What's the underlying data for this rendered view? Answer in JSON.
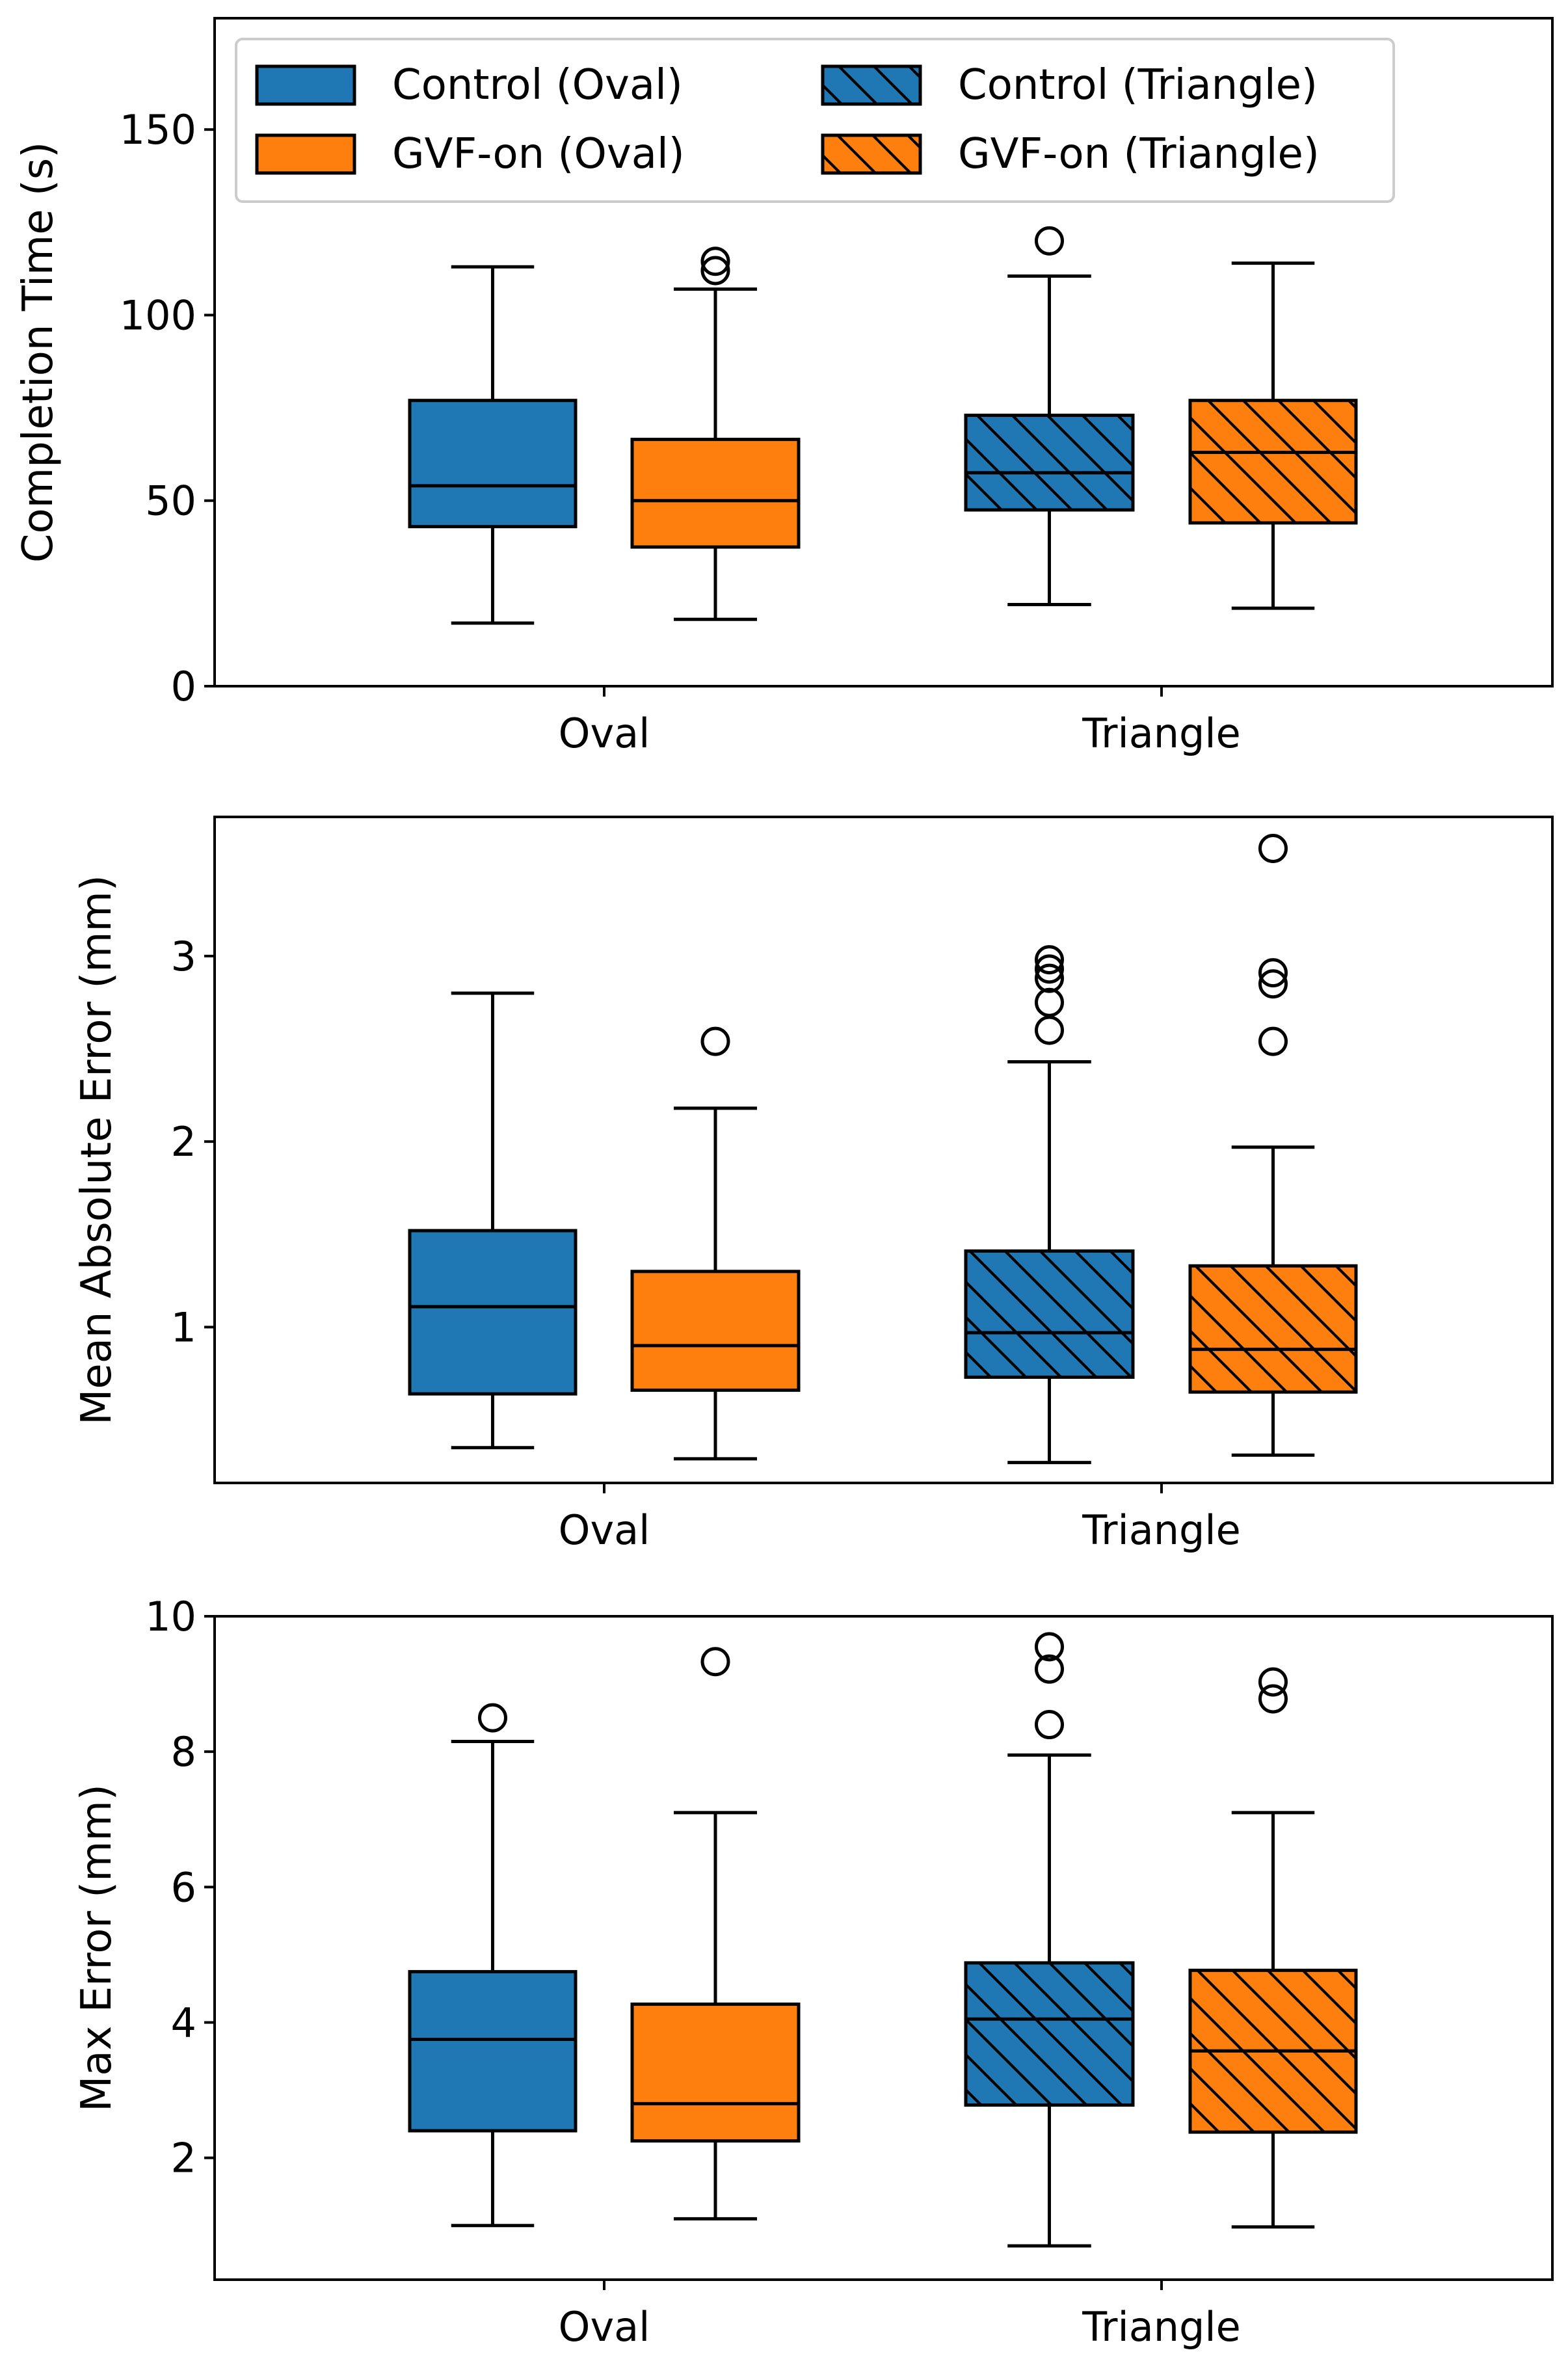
{
  "colors": {
    "control": "#1f77b4",
    "gvf": "#ff7f0e",
    "edge": "#000000"
  },
  "legend": {
    "placement": "top-left",
    "entries": [
      {
        "label": "Control (Oval)",
        "series": "control",
        "hatch": false
      },
      {
        "label": "GVF-on (Oval)",
        "series": "gvf",
        "hatch": false
      },
      {
        "label": "Control (Triangle)",
        "series": "control",
        "hatch": true
      },
      {
        "label": "GVF-on (Triangle)",
        "series": "gvf",
        "hatch": true
      }
    ]
  },
  "chart_data": [
    {
      "type": "boxplot",
      "ylabel": "Completion Time (s)",
      "ylim": [
        0,
        180
      ],
      "yticks": [
        0,
        50,
        100,
        150
      ],
      "grid": false,
      "categories": [
        "Oval",
        "Triangle"
      ],
      "series": [
        {
          "name": "Control",
          "color": "control",
          "boxes": [
            {
              "category": "Oval",
              "whislo": 17,
              "q1": 43,
              "median": 54,
              "q3": 77,
              "whishi": 113,
              "fliers": []
            },
            {
              "category": "Triangle",
              "whislo": 22,
              "q1": 47.5,
              "median": 57.5,
              "q3": 73,
              "whishi": 110.5,
              "fliers": [
                120
              ]
            }
          ]
        },
        {
          "name": "GVF-on",
          "color": "gvf",
          "boxes": [
            {
              "category": "Oval",
              "whislo": 18,
              "q1": 37.5,
              "median": 50,
              "q3": 66.5,
              "whishi": 107,
              "fliers": [
                112,
                114.5
              ]
            },
            {
              "category": "Triangle",
              "whislo": 21,
              "q1": 44,
              "median": 63,
              "q3": 77,
              "whishi": 114,
              "fliers": []
            }
          ]
        }
      ]
    },
    {
      "type": "boxplot",
      "ylabel": "Mean Absolute Error (mm)",
      "ylim": [
        0.16,
        3.75
      ],
      "yticks": [
        1,
        2,
        3
      ],
      "grid": false,
      "categories": [
        "Oval",
        "Triangle"
      ],
      "series": [
        {
          "name": "Control",
          "color": "control",
          "boxes": [
            {
              "category": "Oval",
              "whislo": 0.35,
              "q1": 0.64,
              "median": 1.11,
              "q3": 1.52,
              "whishi": 2.8,
              "fliers": []
            },
            {
              "category": "Triangle",
              "whislo": 0.27,
              "q1": 0.73,
              "median": 0.97,
              "q3": 1.41,
              "whishi": 2.43,
              "fliers": [
                2.6,
                2.75,
                2.88,
                2.93,
                2.98
              ]
            }
          ]
        },
        {
          "name": "GVF-on",
          "color": "gvf",
          "boxes": [
            {
              "category": "Oval",
              "whislo": 0.29,
              "q1": 0.66,
              "median": 0.9,
              "q3": 1.3,
              "whishi": 2.18,
              "fliers": [
                2.54
              ]
            },
            {
              "category": "Triangle",
              "whislo": 0.31,
              "q1": 0.65,
              "median": 0.88,
              "q3": 1.33,
              "whishi": 1.97,
              "fliers": [
                2.54,
                2.85,
                2.91,
                3.58
              ]
            }
          ]
        }
      ]
    },
    {
      "type": "boxplot",
      "ylabel": "Max Error (mm)",
      "ylim": [
        0.2,
        10.0
      ],
      "yticks": [
        2,
        4,
        6,
        8,
        10
      ],
      "grid": false,
      "categories": [
        "Oval",
        "Triangle"
      ],
      "series": [
        {
          "name": "Control",
          "color": "control",
          "boxes": [
            {
              "category": "Oval",
              "whislo": 1.0,
              "q1": 2.4,
              "median": 3.75,
              "q3": 4.75,
              "whishi": 8.15,
              "fliers": [
                8.5
              ]
            },
            {
              "category": "Triangle",
              "whislo": 0.7,
              "q1": 2.78,
              "median": 4.05,
              "q3": 4.88,
              "whishi": 7.95,
              "fliers": [
                8.4,
                9.22,
                9.55
              ]
            }
          ]
        },
        {
          "name": "GVF-on",
          "color": "gvf",
          "boxes": [
            {
              "category": "Oval",
              "whislo": 1.1,
              "q1": 2.25,
              "median": 2.8,
              "q3": 4.27,
              "whishi": 7.1,
              "fliers": [
                9.33
              ]
            },
            {
              "category": "Triangle",
              "whislo": 0.98,
              "q1": 2.38,
              "median": 3.58,
              "q3": 4.77,
              "whishi": 7.1,
              "fliers": [
                8.78,
                9.03
              ]
            }
          ]
        }
      ]
    }
  ]
}
